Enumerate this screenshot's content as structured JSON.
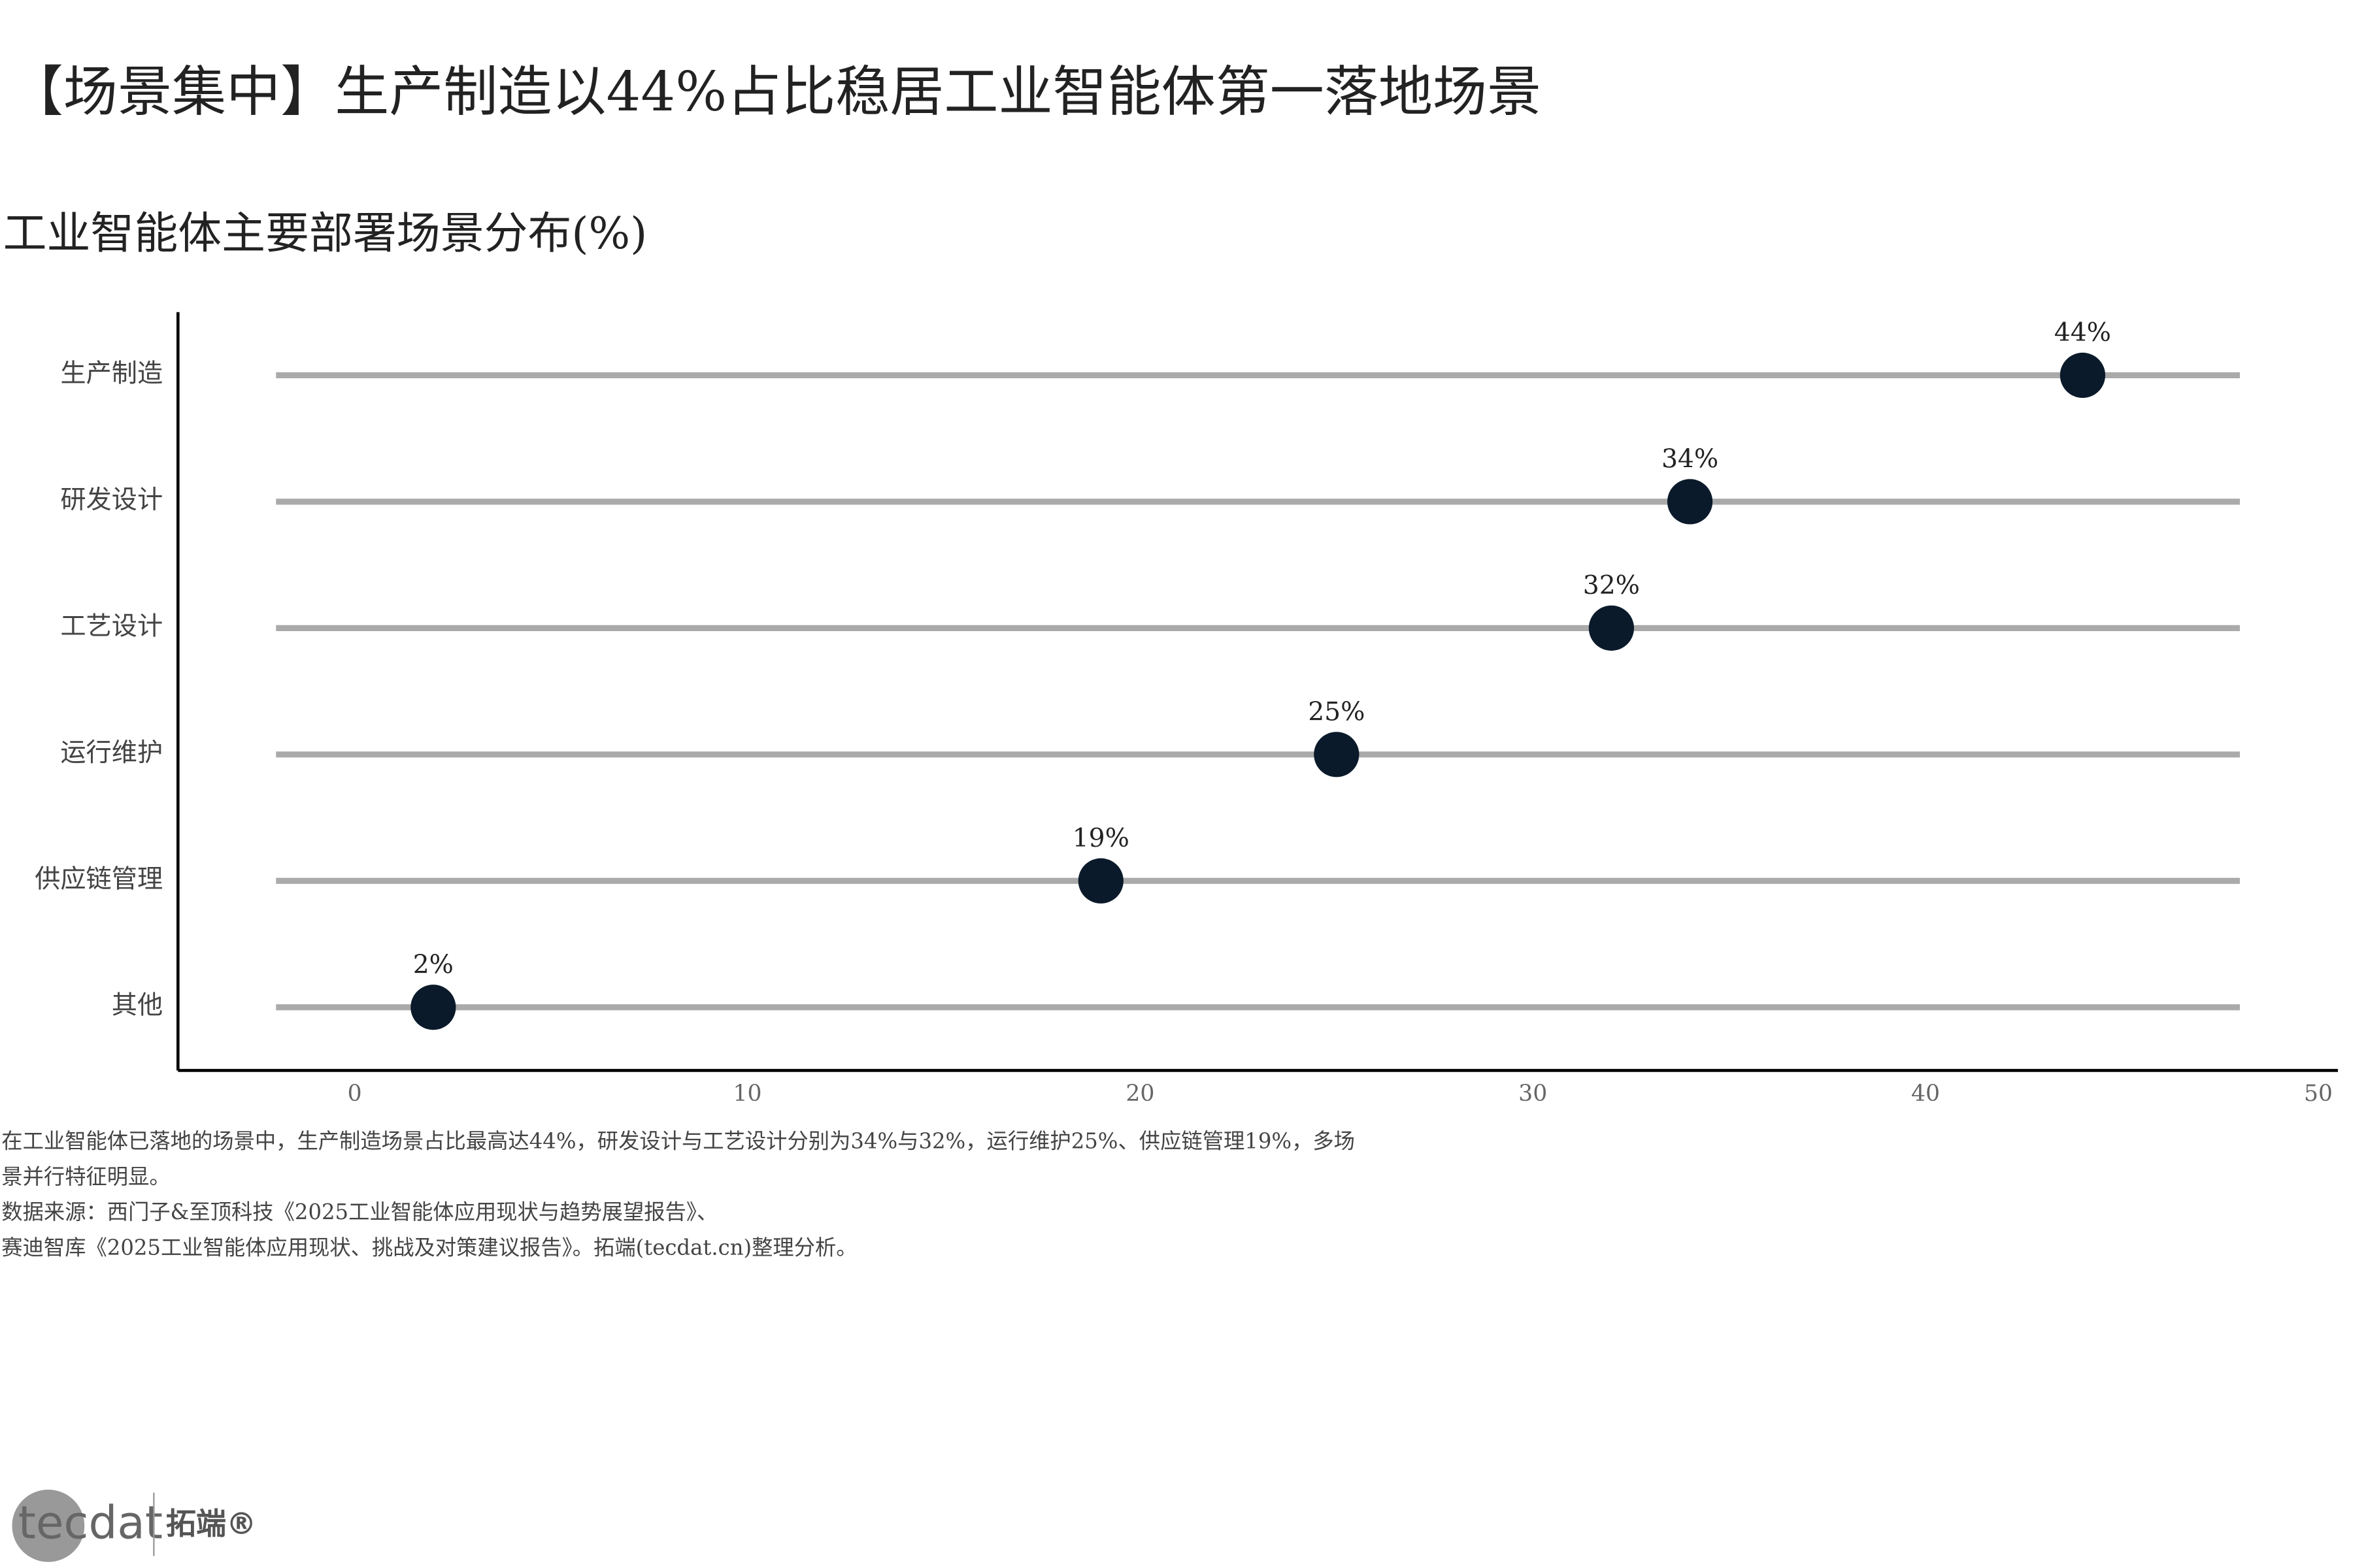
{
  "title": "【场景集中】生产制造以44%占比稳居工业智能体第一落地场景",
  "chart_data": {
    "type": "dot",
    "title": "工业智能体主要部署场景分布(%)",
    "categories": [
      "生产制造",
      "研发设计",
      "工艺设计",
      "运行维护",
      "供应链管理",
      "其他"
    ],
    "values": [
      44,
      34,
      32,
      25,
      19,
      2
    ],
    "value_labels": [
      "44%",
      "34%",
      "32%",
      "25%",
      "19%",
      "2%"
    ],
    "color": "#0b1a2a",
    "xlim": [
      -4.5,
      50.5
    ],
    "xticks": [
      0,
      10,
      20,
      30,
      40,
      50
    ]
  },
  "notes": [
    "在工业智能体已落地的场景中，生产制造场景占比最高达44%，研发设计与工艺设计分别为34%与32%，运行维护25%、供应链管理19%，多场",
    "景并行特征明显。",
    "数据来源：西门子&至顶科技《2025工业智能体应用现状与趋势展望报告》、",
    "赛迪智库《2025工业智能体应用现状、挑战及对策建议报告》。拓端(tecdat.cn)整理分析。"
  ],
  "logo": {
    "mark": "tecdat",
    "name": "拓端®"
  }
}
